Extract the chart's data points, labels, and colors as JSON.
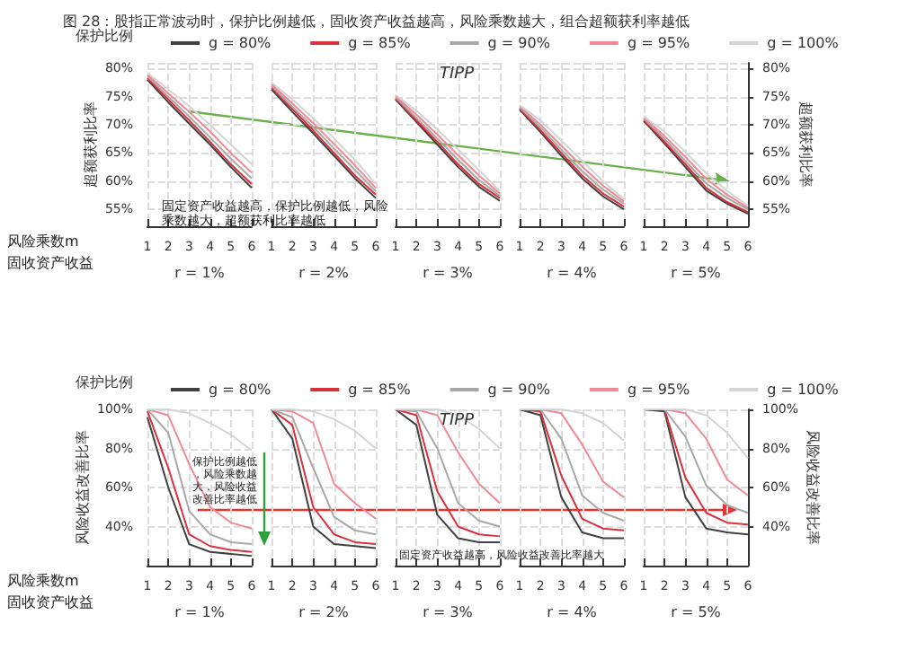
{
  "chart_data": [
    {
      "type": "line",
      "title": "图 28：股指正常波动时，保护比例越低，固收资产收益越高，风险乘数越大，组合超额获利率越低",
      "legend_title": "保护比例",
      "legend": "top",
      "ylabel": "超额获利比率",
      "xlabel": "r = 1%",
      "grid": true,
      "x": [
        1,
        2,
        3,
        4,
        5,
        6
      ],
      "xlim": [
        1,
        6
      ],
      "xticks": [
        1,
        2,
        3,
        4,
        5,
        6
      ],
      "ylim": [
        52,
        81
      ],
      "yticks": [
        {
          "value": 55,
          "label": "55%"
        },
        {
          "value": 60,
          "label": "60%"
        },
        {
          "value": 65,
          "label": "65%"
        },
        {
          "value": 70,
          "label": "70%"
        },
        {
          "value": 75,
          "label": "75%"
        },
        {
          "value": 80,
          "label": "80%"
        }
      ],
      "annotations": [
        "固定资产收益越高，保护比例越低，风险乘数越大，超额获利比率越低",
        "风险乘数m",
        "固收资产收益"
      ],
      "series": [
        {
          "name": "g = 80%",
          "color": "#404040",
          "values": [
            78,
            74,
            70.2,
            66.5,
            62.5,
            58.8
          ]
        },
        {
          "name": "g = 85%",
          "color": "#d9303a",
          "values": [
            78.3,
            74.5,
            70.8,
            67,
            63,
            59.5
          ]
        },
        {
          "name": "g = 90%",
          "color": "#a8a8a8",
          "values": [
            78.6,
            75,
            71.5,
            67.8,
            64,
            60.5
          ]
        },
        {
          "name": "g = 95%",
          "color": "#f08a94",
          "values": [
            78.9,
            75.6,
            72.3,
            68.8,
            65,
            61.5
          ]
        },
        {
          "name": "g = 100%",
          "color": "#d4d4d4",
          "values": [
            79.2,
            76.3,
            73.3,
            70,
            66.5,
            63
          ]
        }
      ]
    },
    {
      "type": "line",
      "xlabel": "r = 2%",
      "grid": true,
      "tick_labels": "x",
      "x": [
        1,
        2,
        3,
        4,
        5,
        6
      ],
      "xlim": [
        1,
        6
      ],
      "xticks": [
        1,
        2,
        3,
        4,
        5,
        6
      ],
      "ylim": [
        52,
        81
      ],
      "series": [
        {
          "color": "#404040",
          "values": [
            76.3,
            72.3,
            68.5,
            64.5,
            60.5,
            57
          ]
        },
        {
          "color": "#d9303a",
          "values": [
            76.6,
            72.8,
            69,
            65,
            61,
            57.6
          ]
        },
        {
          "color": "#a8a8a8",
          "values": [
            76.9,
            73.2,
            69.6,
            65.8,
            62,
            58.2
          ]
        },
        {
          "color": "#f08a94",
          "values": [
            77.2,
            73.8,
            70.3,
            66.6,
            62.8,
            58.8
          ]
        },
        {
          "color": "#d4d4d4",
          "values": [
            77.5,
            74.5,
            71.2,
            67.6,
            63.8,
            59.5
          ]
        }
      ]
    },
    {
      "type": "line",
      "subtitle": "TIPP",
      "xlabel": "r = 3%",
      "grid": true,
      "tick_labels": "x",
      "x": [
        1,
        2,
        3,
        4,
        5,
        6
      ],
      "xlim": [
        1,
        6
      ],
      "xticks": [
        1,
        2,
        3,
        4,
        5,
        6
      ],
      "ylim": [
        52,
        81
      ],
      "series": [
        {
          "color": "#404040",
          "values": [
            74.5,
            70.5,
            66.5,
            62.5,
            59,
            56.5
          ]
        },
        {
          "color": "#d9303a",
          "values": [
            74.7,
            70.8,
            67,
            63,
            59.5,
            57
          ]
        },
        {
          "color": "#a8a8a8",
          "values": [
            74.9,
            71.2,
            67.6,
            63.8,
            60.2,
            57.4
          ]
        },
        {
          "color": "#f08a94",
          "values": [
            75.1,
            71.8,
            68.3,
            64.6,
            61,
            57.8
          ]
        },
        {
          "color": "#d4d4d4",
          "values": [
            75.3,
            72.5,
            69.2,
            65.6,
            62,
            58.2
          ]
        }
      ]
    },
    {
      "type": "line",
      "xlabel": "r = 4%",
      "grid": true,
      "tick_labels": "x",
      "x": [
        1,
        2,
        3,
        4,
        5,
        6
      ],
      "xlim": [
        1,
        6
      ],
      "xticks": [
        1,
        2,
        3,
        4,
        5,
        6
      ],
      "ylim": [
        52,
        81
      ],
      "series": [
        {
          "color": "#404040",
          "values": [
            72.7,
            68.7,
            64.5,
            60.5,
            57.3,
            55
          ]
        },
        {
          "color": "#d9303a",
          "values": [
            72.9,
            69,
            65,
            61,
            57.8,
            55.5
          ]
        },
        {
          "color": "#a8a8a8",
          "values": [
            73.1,
            69.5,
            65.6,
            61.8,
            58.5,
            56
          ]
        },
        {
          "color": "#f08a94",
          "values": [
            73.3,
            70,
            66.3,
            62.6,
            59.2,
            56.4
          ]
        },
        {
          "color": "#d4d4d4",
          "values": [
            73.5,
            70.8,
            67.2,
            63.6,
            60,
            56.8
          ]
        }
      ]
    },
    {
      "type": "line",
      "xlabel": "r = 5%",
      "grid": true,
      "x": [
        1,
        2,
        3,
        4,
        5,
        6
      ],
      "xlim": [
        1,
        6
      ],
      "xticks": [
        1,
        2,
        3,
        4,
        5,
        6
      ],
      "ylim": [
        52,
        81
      ],
      "y2label": "超额获利比率",
      "y2lim": [
        52,
        81
      ],
      "y2ticks": [
        {
          "value": 55,
          "label": "55%"
        },
        {
          "value": 60,
          "label": "60%"
        },
        {
          "value": 65,
          "label": "65%"
        },
        {
          "value": 70,
          "label": "70%"
        },
        {
          "value": 75,
          "label": "75%"
        },
        {
          "value": 80,
          "label": "80%"
        }
      ],
      "series": [
        {
          "color": "#404040",
          "values": [
            70.7,
            66.7,
            62.5,
            58.3,
            56,
            54.2
          ]
        },
        {
          "color": "#d9303a",
          "values": [
            70.9,
            67,
            63,
            58.8,
            56.3,
            54.5
          ]
        },
        {
          "color": "#a8a8a8",
          "values": [
            71.1,
            67.5,
            63.6,
            59.6,
            57,
            55
          ]
        },
        {
          "color": "#f08a94",
          "values": [
            71.3,
            68,
            64.3,
            60.4,
            57.6,
            55.3
          ]
        },
        {
          "color": "#d4d4d4",
          "values": [
            71.5,
            68.8,
            65.2,
            61.4,
            58.3,
            55.6
          ]
        }
      ]
    },
    {
      "type": "line",
      "legend_title": "保护比例",
      "legend": "top",
      "ylabel": "风险收益改善比率",
      "xlabel": "r = 1%",
      "grid": true,
      "x": [
        1,
        2,
        3,
        4,
        5,
        6
      ],
      "xlim": [
        1,
        6
      ],
      "xticks": [
        1,
        2,
        3,
        4,
        5,
        6
      ],
      "ylim": [
        20,
        100
      ],
      "yticks": [
        {
          "value": 40,
          "label": "40%"
        },
        {
          "value": 60,
          "label": "60%"
        },
        {
          "value": 80,
          "label": "80%"
        },
        {
          "value": 100,
          "label": "100%"
        }
      ],
      "annotations": [
        "保护比例越低，风险乘数越大，风险收益改善比率越低",
        "固定资产收益越高，风险收益改善比率越大",
        "风险乘数m",
        "固收资产收益"
      ],
      "series": [
        {
          "name": "g = 80%",
          "color": "#404040",
          "values": [
            96,
            60,
            31,
            27,
            26,
            25
          ]
        },
        {
          "name": "g = 85%",
          "color": "#d9303a",
          "values": [
            99,
            70,
            36,
            30,
            28,
            27
          ]
        },
        {
          "name": "g = 90%",
          "color": "#a8a8a8",
          "values": [
            100,
            88,
            48,
            36,
            32,
            31
          ]
        },
        {
          "name": "g = 95%",
          "color": "#f08a94",
          "values": [
            100,
            97,
            72,
            50,
            42,
            39
          ]
        },
        {
          "name": "g = 100%",
          "color": "#d4d4d4",
          "values": [
            100,
            100,
            98,
            93,
            87,
            79
          ]
        }
      ]
    },
    {
      "type": "line",
      "xlabel": "r = 2%",
      "grid": true,
      "tick_labels": "x",
      "x": [
        1,
        2,
        3,
        4,
        5,
        6
      ],
      "xlim": [
        1,
        6
      ],
      "xticks": [
        1,
        2,
        3,
        4,
        5,
        6
      ],
      "ylim": [
        20,
        100
      ],
      "series": [
        {
          "color": "#404040",
          "values": [
            100,
            85,
            40,
            31,
            30,
            29
          ]
        },
        {
          "color": "#d9303a",
          "values": [
            100,
            92,
            50,
            36,
            32,
            31
          ]
        },
        {
          "color": "#a8a8a8",
          "values": [
            100,
            96,
            70,
            45,
            38,
            36
          ]
        },
        {
          "color": "#f08a94",
          "values": [
            100,
            99,
            93,
            62,
            52,
            44
          ]
        },
        {
          "color": "#d4d4d4",
          "values": [
            100,
            100,
            99,
            95,
            89,
            80
          ]
        }
      ]
    },
    {
      "type": "line",
      "subtitle": "TIPP",
      "xlabel": "r = 3%",
      "grid": true,
      "tick_labels": "x",
      "x": [
        1,
        2,
        3,
        4,
        5,
        6
      ],
      "xlim": [
        1,
        6
      ],
      "xticks": [
        1,
        2,
        3,
        4,
        5,
        6
      ],
      "ylim": [
        20,
        100
      ],
      "series": [
        {
          "color": "#404040",
          "values": [
            100,
            92,
            46,
            34,
            32,
            32
          ]
        },
        {
          "color": "#d9303a",
          "values": [
            100,
            97,
            58,
            40,
            36,
            35
          ]
        },
        {
          "color": "#a8a8a8",
          "values": [
            100,
            99,
            80,
            52,
            43,
            40
          ]
        },
        {
          "color": "#f08a94",
          "values": [
            100,
            100,
            97,
            78,
            62,
            52
          ]
        },
        {
          "color": "#d4d4d4",
          "values": [
            100,
            100,
            100,
            97,
            90,
            80
          ]
        }
      ]
    },
    {
      "type": "line",
      "xlabel": "r = 4%",
      "grid": true,
      "tick_labels": "x",
      "x": [
        1,
        2,
        3,
        4,
        5,
        6
      ],
      "xlim": [
        1,
        6
      ],
      "xticks": [
        1,
        2,
        3,
        4,
        5,
        6
      ],
      "ylim": [
        20,
        100
      ],
      "series": [
        {
          "color": "#404040",
          "values": [
            100,
            97,
            55,
            37,
            34,
            34
          ]
        },
        {
          "color": "#d9303a",
          "values": [
            100,
            99,
            66,
            44,
            39,
            38
          ]
        },
        {
          "color": "#a8a8a8",
          "values": [
            100,
            100,
            85,
            56,
            47,
            43
          ]
        },
        {
          "color": "#f08a94",
          "values": [
            100,
            100,
            98,
            82,
            63,
            55
          ]
        },
        {
          "color": "#d4d4d4",
          "values": [
            100,
            100,
            100,
            98,
            93,
            84
          ]
        }
      ]
    },
    {
      "type": "line",
      "xlabel": "r = 5%",
      "grid": true,
      "x": [
        1,
        2,
        3,
        4,
        5,
        6
      ],
      "xlim": [
        1,
        6
      ],
      "xticks": [
        1,
        2,
        3,
        4,
        5,
        6
      ],
      "ylim": [
        20,
        100
      ],
      "y2label": "风险收益改善比率",
      "y2lim": [
        20,
        100
      ],
      "y2ticks": [
        {
          "value": 40,
          "label": "40%"
        },
        {
          "value": 60,
          "label": "60%"
        },
        {
          "value": 80,
          "label": "80%"
        },
        {
          "value": 100,
          "label": "100%"
        }
      ],
      "series": [
        {
          "color": "#404040",
          "values": [
            100,
            99,
            55,
            39,
            37,
            36
          ]
        },
        {
          "color": "#d9303a",
          "values": [
            100,
            100,
            65,
            47,
            42,
            41
          ]
        },
        {
          "color": "#a8a8a8",
          "values": [
            100,
            100,
            86,
            61,
            51,
            47
          ]
        },
        {
          "color": "#f08a94",
          "values": [
            100,
            100,
            98,
            85,
            64,
            56
          ]
        },
        {
          "color": "#d4d4d4",
          "values": [
            100,
            100,
            100,
            97,
            88,
            75
          ]
        }
      ]
    }
  ]
}
